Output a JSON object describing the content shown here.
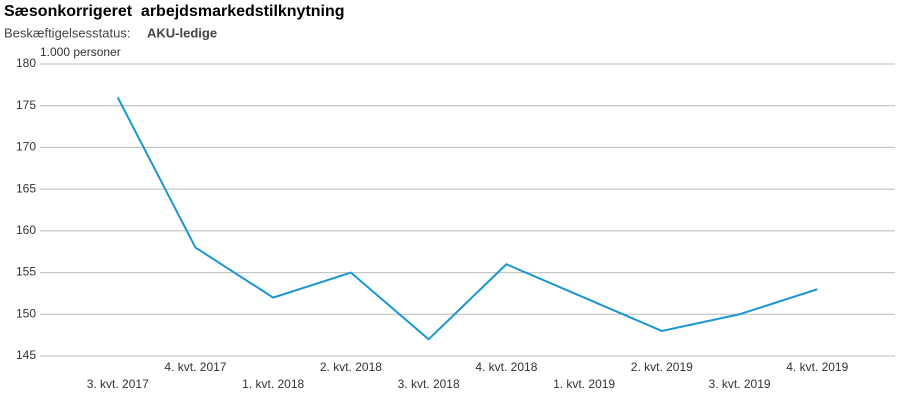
{
  "chart_data": {
    "type": "line",
    "title": "Sæsonkorrigeret  arbejdsmarkedstilknytning",
    "filter_label": "Beskæftigelsesstatus:",
    "filter_value": "AKU-ledige",
    "y_label": "1.000 personer",
    "categories": [
      "3. kvt. 2017",
      "4. kvt. 2017",
      "1. kvt. 2018",
      "2. kvt. 2018",
      "3. kvt. 2018",
      "4. kvt. 2018",
      "1. kvt. 2019",
      "2. kvt. 2019",
      "3. kvt. 2019",
      "4. kvt. 2019"
    ],
    "series": [
      {
        "name": "AKU-ledige",
        "color": "#1a96d2",
        "values": [
          176,
          158,
          152,
          155,
          147,
          156,
          152,
          148,
          150,
          153
        ]
      }
    ],
    "ylim": [
      145,
      180
    ],
    "yticks": [
      145,
      150,
      155,
      160,
      165,
      170,
      175,
      180
    ],
    "grid": true
  }
}
